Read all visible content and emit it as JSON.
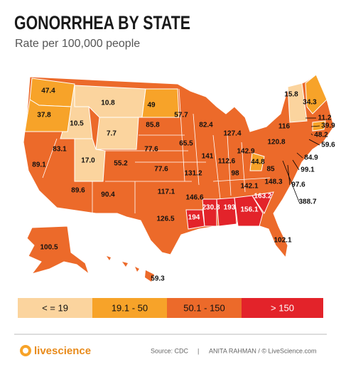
{
  "title": "GONORRHEA BY STATE",
  "subtitle": "Rate per 100,000 people",
  "map": {
    "labels": [
      "47.4",
      "37.8",
      "10.5",
      "10.8",
      "49",
      "85.8",
      "7.7",
      "57.7",
      "82.4",
      "127.4",
      "15.8",
      "34.3",
      "11.2",
      "39.9",
      "48.2",
      "59.6",
      "116",
      "83.1",
      "17.0",
      "77.6",
      "65.5",
      "142.9",
      "120.8",
      "84.9",
      "99.1",
      "89.1",
      "55.2",
      "77.6",
      "141",
      "112.6",
      "44.8",
      "85",
      "97.6",
      "131.2",
      "98",
      "142.1",
      "148.3",
      "388.7",
      "89.6",
      "90.4",
      "117.1",
      "146.6",
      "163.2",
      "230.8",
      "193",
      "156.1",
      "194",
      "126.5",
      "102.1",
      "100.5",
      "59.3"
    ]
  },
  "legend": {
    "items": [
      {
        "label": "< = 19",
        "color": "#fbd49e"
      },
      {
        "label": "19.1 - 50",
        "color": "#f7a329"
      },
      {
        "label": "50.1 - 150",
        "color": "#ec6a2a"
      },
      {
        "label": "> 150",
        "color": "#e3232a"
      }
    ]
  },
  "footer": {
    "logo": "livescience",
    "source": "Source: CDC",
    "separator": "|",
    "credit": "ANITA RAHMAN / © LiveScience.com"
  }
}
